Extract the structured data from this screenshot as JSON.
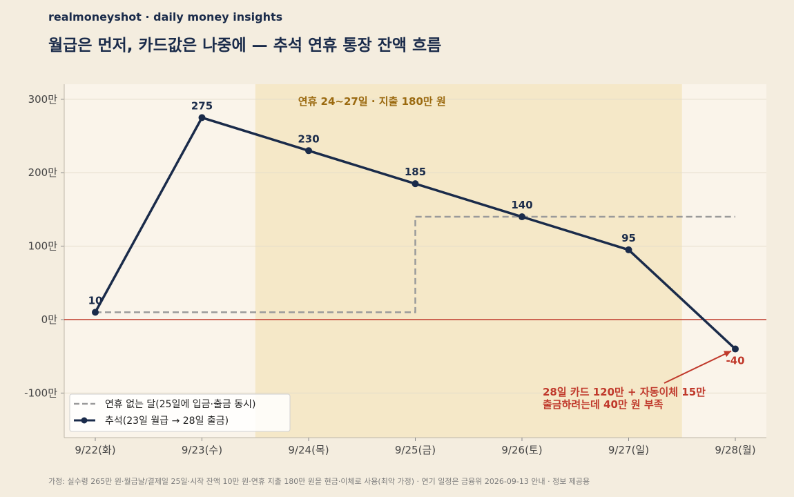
{
  "brand": "realmoneyshot · daily money insights",
  "title": "월급은 먼저, 카드값은 나중에 — 추석 연휴 통장 잔액 흐름",
  "footnote": "가정: 실수령 265만 원·월급날/결제일 25일·시작 잔액 10만 원·연휴 지출 180만 원을 현금·이체로 사용(최악 가정) · 연기 일정은 금융위 2026-09-13 안내 · 정보 제공용",
  "colors": {
    "background": "#f4eddf",
    "plot_background": "#faf4ea",
    "holiday_band": "#f5e8c8",
    "main_series": "#1a2b4a",
    "baseline_series": "#9a9a9a",
    "zero_line": "#c0392b",
    "note": "#c0392b",
    "event_text": "#9b6a10"
  },
  "chart_data": {
    "type": "line",
    "title": "월급은 먼저, 카드값은 나중에 — 추석 연휴 통장 잔액 흐름",
    "xlabel": "",
    "ylabel": "",
    "categories": [
      "9/22(화)",
      "9/23(수)",
      "9/24(목)",
      "9/25(금)",
      "9/26(토)",
      "9/27(일)",
      "9/28(월)"
    ],
    "ylim": [
      -160,
      320
    ],
    "yticks": [
      -100,
      0,
      100,
      200,
      300
    ],
    "ytick_labels": [
      "-100만",
      "0만",
      "100만",
      "200만",
      "300만"
    ],
    "grid": true,
    "legend_position": "bottom-left",
    "series": [
      {
        "name": "연휴 없는 달(25일에 입금·출금 동시)",
        "style": "dashed-step",
        "color": "#9a9a9a",
        "values": [
          10,
          10,
          10,
          140,
          140,
          140,
          140
        ]
      },
      {
        "name": "추석(23일 월급 → 28일 출금)",
        "style": "solid-marker",
        "color": "#1a2b4a",
        "values": [
          10,
          275,
          230,
          185,
          140,
          95,
          -40
        ],
        "data_labels": [
          "10",
          "275",
          "230",
          "185",
          "140",
          "95",
          "-40"
        ]
      }
    ],
    "shaded_region": {
      "from": "9/23(수) ~ 9/24(목)",
      "x_range": [
        1.5,
        5.5
      ],
      "label": "연휴 24~27일 · 지출 180만 원"
    },
    "zero_line": 0,
    "annotation": {
      "lines": [
        "28일 카드 120만 + 자동이체 15만",
        "출금하려는데 40만 원 부족"
      ],
      "points_to": {
        "x": 6,
        "y": -40
      }
    }
  }
}
